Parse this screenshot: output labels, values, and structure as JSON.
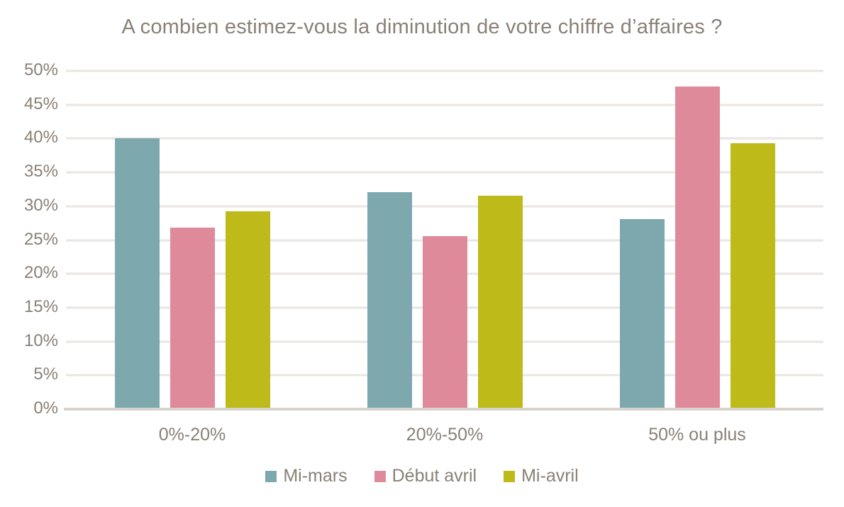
{
  "chart_data": {
    "type": "bar",
    "title": "A combien estimez-vous la diminution de votre chiffre d’affaires ?",
    "categories": [
      "0%-20%",
      "20%-50%",
      "50% ou plus"
    ],
    "series": [
      {
        "name": "Mi-mars",
        "color": "#7DA8AE",
        "values": [
          40.0,
          32.1,
          28.1
        ]
      },
      {
        "name": "Début avril",
        "color": "#DF8A9B",
        "values": [
          26.8,
          25.6,
          47.7
        ]
      },
      {
        "name": "Mi-avril",
        "color": "#BDBA1A",
        "values": [
          29.2,
          31.6,
          39.3
        ]
      }
    ],
    "y_axis": {
      "min": 0,
      "max": 50,
      "step": 5,
      "ticks": [
        "0%",
        "5%",
        "10%",
        "15%",
        "20%",
        "25%",
        "30%",
        "35%",
        "40%",
        "45%",
        "50%"
      ]
    },
    "grid": true,
    "legend_position": "bottom"
  },
  "colors": {
    "text": "#8A8076",
    "gridline": "#EAE6E2",
    "axis_line": "#D9D3CD",
    "background": "#FFFFFF"
  }
}
